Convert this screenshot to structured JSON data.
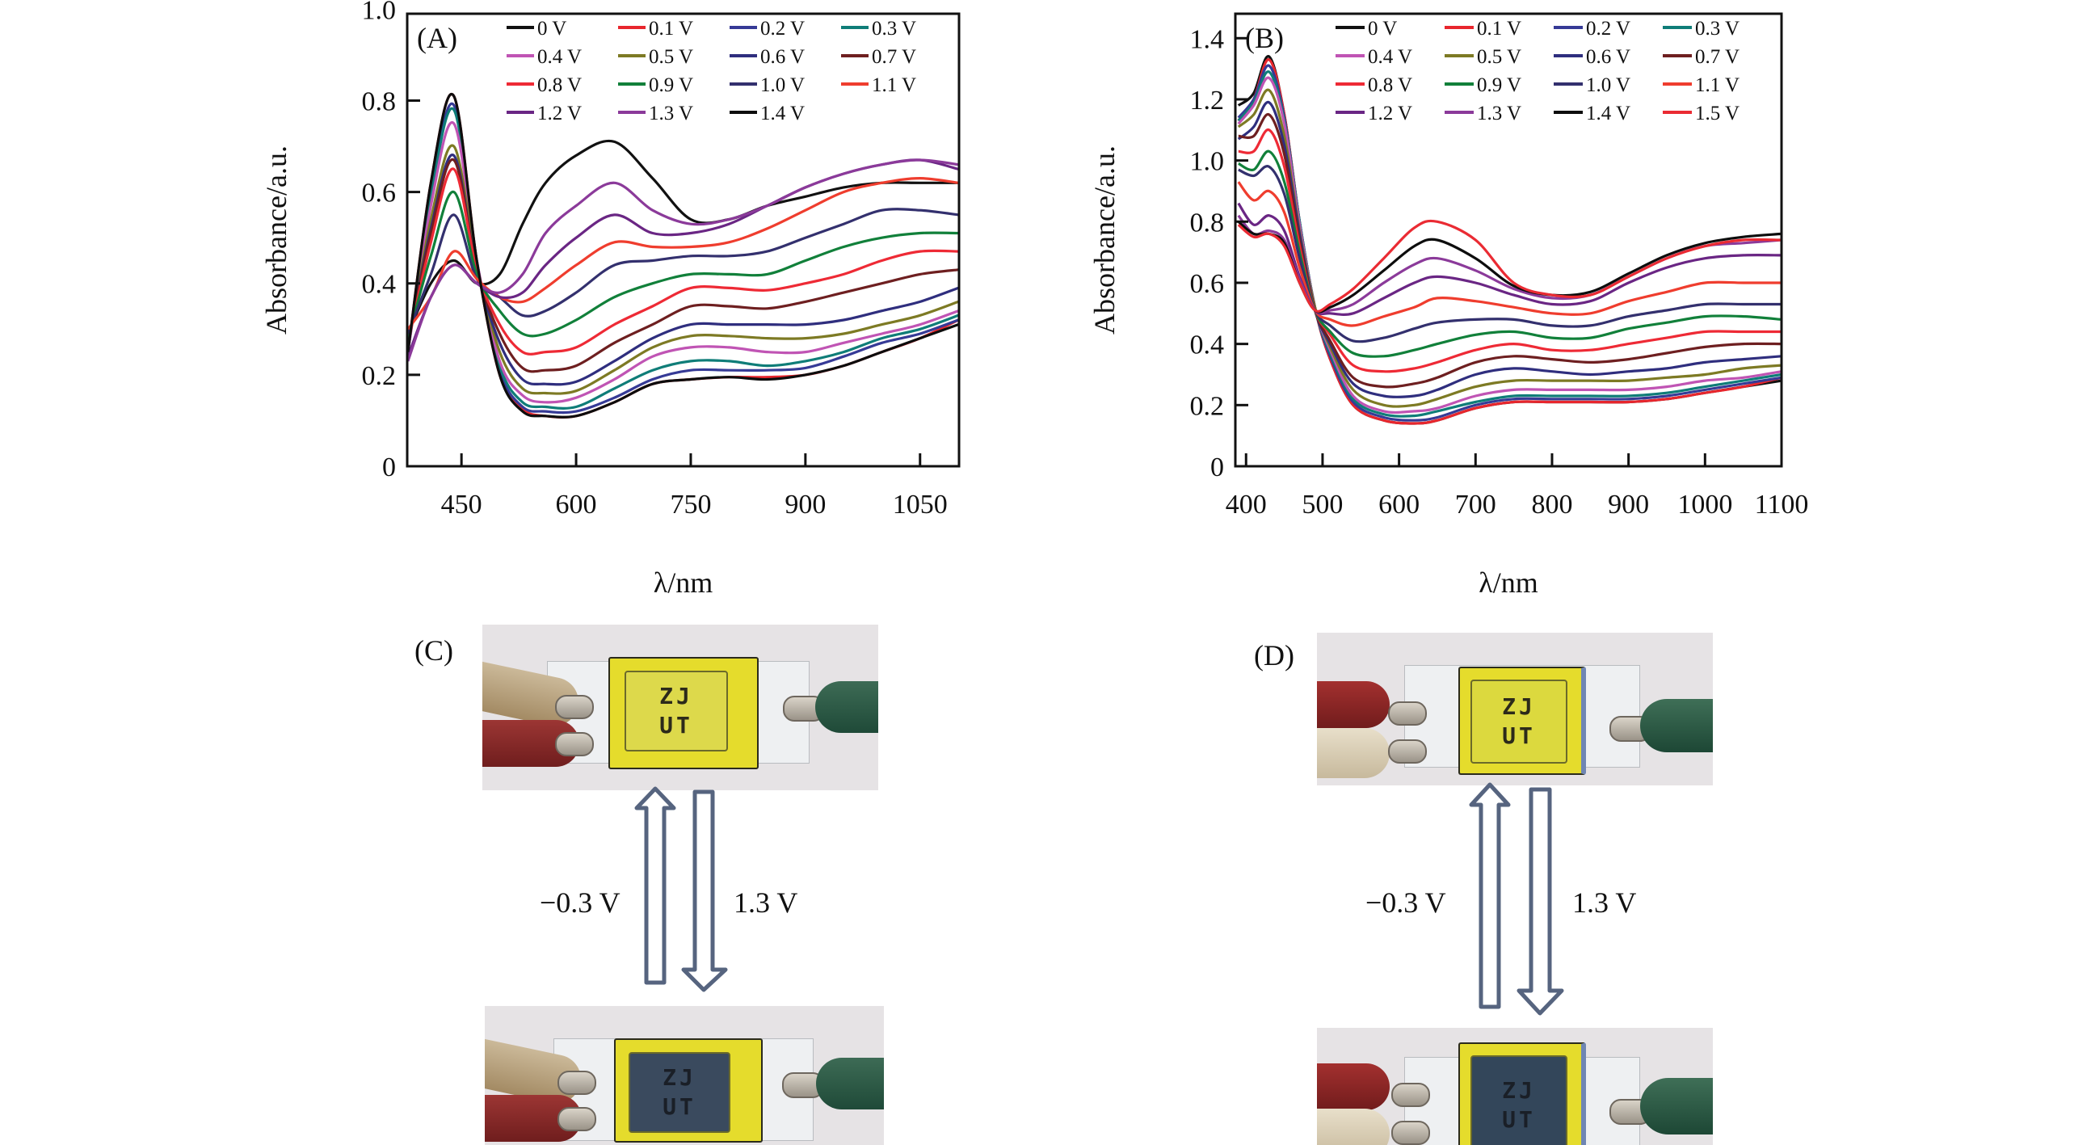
{
  "chart_data": [
    {
      "type": "line",
      "panel_label": "(A)",
      "xlabel": "λ/nm",
      "ylabel": "Absorbance/a.u.",
      "xlim": [
        379,
        1101
      ],
      "ylim": [
        0,
        0.99
      ],
      "xticks": [
        450,
        600,
        750,
        900,
        1050
      ],
      "yticks": [
        0,
        0.2,
        0.4,
        0.6,
        0.8,
        1.0
      ],
      "ytick_labels": [
        "0",
        "0.2",
        "0.4",
        "0.6",
        "0.8",
        "1.0"
      ],
      "grid": false,
      "legend_position": "top-right",
      "legend_columns": 4,
      "x": [
        380,
        410,
        440,
        470,
        500,
        530,
        560,
        600,
        650,
        700,
        750,
        800,
        850,
        900,
        950,
        1000,
        1050,
        1100
      ],
      "series": [
        {
          "name": "0 V",
          "color": "#111111",
          "values": [
            0.29,
            0.4,
            0.45,
            0.4,
            0.42,
            0.53,
            0.62,
            0.68,
            0.71,
            0.63,
            0.54,
            0.54,
            0.57,
            0.59,
            0.61,
            0.62,
            0.62,
            0.62
          ]
        },
        {
          "name": "0.1 V",
          "color": "#e8262d",
          "values": [
            0.25,
            0.62,
            0.81,
            0.45,
            0.2,
            0.125,
            0.11,
            0.11,
            0.14,
            0.18,
            0.19,
            0.195,
            0.195,
            0.2,
            0.22,
            0.25,
            0.28,
            0.32
          ]
        },
        {
          "name": "0.2 V",
          "color": "#363a96",
          "values": [
            0.25,
            0.6,
            0.79,
            0.45,
            0.21,
            0.13,
            0.12,
            0.12,
            0.15,
            0.19,
            0.21,
            0.21,
            0.21,
            0.215,
            0.24,
            0.27,
            0.29,
            0.32
          ]
        },
        {
          "name": "0.3 V",
          "color": "#0f7d78",
          "values": [
            0.25,
            0.59,
            0.78,
            0.45,
            0.22,
            0.14,
            0.13,
            0.13,
            0.17,
            0.21,
            0.23,
            0.23,
            0.22,
            0.23,
            0.25,
            0.28,
            0.3,
            0.33
          ]
        },
        {
          "name": "0.4 V",
          "color": "#c054b4",
          "values": [
            0.25,
            0.57,
            0.75,
            0.45,
            0.23,
            0.155,
            0.14,
            0.15,
            0.19,
            0.24,
            0.26,
            0.26,
            0.25,
            0.25,
            0.27,
            0.29,
            0.31,
            0.34
          ]
        },
        {
          "name": "0.5 V",
          "color": "#7d7a24",
          "values": [
            0.26,
            0.54,
            0.7,
            0.44,
            0.25,
            0.17,
            0.16,
            0.165,
            0.21,
            0.26,
            0.285,
            0.285,
            0.28,
            0.28,
            0.29,
            0.31,
            0.33,
            0.36
          ]
        },
        {
          "name": "0.6 V",
          "color": "#2f2e7e",
          "values": [
            0.27,
            0.52,
            0.68,
            0.43,
            0.27,
            0.19,
            0.18,
            0.185,
            0.23,
            0.28,
            0.31,
            0.31,
            0.31,
            0.31,
            0.32,
            0.34,
            0.36,
            0.39
          ]
        },
        {
          "name": "0.7 V",
          "color": "#6e1f20",
          "values": [
            0.27,
            0.51,
            0.67,
            0.43,
            0.29,
            0.215,
            0.21,
            0.22,
            0.27,
            0.31,
            0.35,
            0.35,
            0.345,
            0.36,
            0.38,
            0.4,
            0.42,
            0.43
          ]
        },
        {
          "name": "0.8 V",
          "color": "#ee2a35",
          "values": [
            0.27,
            0.49,
            0.65,
            0.43,
            0.31,
            0.25,
            0.25,
            0.26,
            0.31,
            0.35,
            0.39,
            0.39,
            0.385,
            0.4,
            0.42,
            0.45,
            0.47,
            0.47
          ]
        },
        {
          "name": "0.9 V",
          "color": "#11803a",
          "values": [
            0.28,
            0.46,
            0.6,
            0.42,
            0.34,
            0.29,
            0.29,
            0.32,
            0.37,
            0.4,
            0.42,
            0.42,
            0.42,
            0.45,
            0.48,
            0.5,
            0.51,
            0.51
          ]
        },
        {
          "name": "1.0 V",
          "color": "#33306e",
          "values": [
            0.29,
            0.42,
            0.55,
            0.41,
            0.37,
            0.33,
            0.34,
            0.38,
            0.44,
            0.45,
            0.46,
            0.46,
            0.47,
            0.5,
            0.53,
            0.56,
            0.56,
            0.55
          ]
        },
        {
          "name": "1.1 V",
          "color": "#ef3d2e",
          "values": [
            0.3,
            0.37,
            0.47,
            0.41,
            0.37,
            0.36,
            0.39,
            0.44,
            0.49,
            0.48,
            0.48,
            0.49,
            0.52,
            0.56,
            0.6,
            0.62,
            0.63,
            0.62
          ]
        },
        {
          "name": "1.2 V",
          "color": "#6a2684",
          "values": [
            0.24,
            0.37,
            0.44,
            0.4,
            0.37,
            0.38,
            0.44,
            0.5,
            0.55,
            0.51,
            0.51,
            0.53,
            0.57,
            0.61,
            0.64,
            0.66,
            0.67,
            0.65
          ]
        },
        {
          "name": "1.3 V",
          "color": "#8b3a9a",
          "values": [
            0.23,
            0.37,
            0.44,
            0.4,
            0.38,
            0.42,
            0.51,
            0.57,
            0.62,
            0.56,
            0.53,
            0.54,
            0.57,
            0.61,
            0.64,
            0.66,
            0.67,
            0.66
          ]
        },
        {
          "name": "1.4 V",
          "color": "#0d0d0d",
          "values": [
            0.25,
            0.62,
            0.81,
            0.45,
            0.2,
            0.12,
            0.11,
            0.11,
            0.14,
            0.18,
            0.19,
            0.195,
            0.19,
            0.2,
            0.22,
            0.25,
            0.28,
            0.31
          ]
        }
      ]
    },
    {
      "type": "line",
      "panel_label": "(B)",
      "xlabel": "λ/nm",
      "ylabel": "Absorbance/a.u.",
      "xlim": [
        386,
        1100
      ],
      "ylim": [
        0,
        1.48
      ],
      "xticks": [
        400,
        500,
        600,
        700,
        800,
        900,
        1000,
        1100
      ],
      "yticks": [
        0,
        0.2,
        0.4,
        0.6,
        0.8,
        1.0,
        1.2,
        1.4
      ],
      "ytick_labels": [
        "0",
        "0.2",
        "0.4",
        "0.6",
        "0.8",
        "1.0",
        "1.2",
        "1.4"
      ],
      "grid": false,
      "legend_position": "top-right",
      "legend_columns": 4,
      "x": [
        390,
        410,
        430,
        450,
        470,
        490,
        510,
        540,
        580,
        620,
        650,
        700,
        750,
        800,
        850,
        900,
        950,
        1000,
        1050,
        1100
      ],
      "series": [
        {
          "name": "0 V",
          "color": "#111111",
          "values": [
            1.18,
            1.22,
            1.34,
            1.15,
            0.8,
            0.52,
            0.35,
            0.2,
            0.15,
            0.14,
            0.15,
            0.19,
            0.21,
            0.21,
            0.21,
            0.21,
            0.22,
            0.24,
            0.26,
            0.28
          ]
        },
        {
          "name": "0.1 V",
          "color": "#e8262d",
          "values": [
            1.13,
            1.2,
            1.33,
            1.15,
            0.8,
            0.52,
            0.35,
            0.2,
            0.15,
            0.14,
            0.15,
            0.19,
            0.21,
            0.21,
            0.21,
            0.21,
            0.22,
            0.24,
            0.26,
            0.29
          ]
        },
        {
          "name": "0.2 V",
          "color": "#363a96",
          "values": [
            1.14,
            1.2,
            1.31,
            1.14,
            0.8,
            0.52,
            0.36,
            0.21,
            0.16,
            0.15,
            0.16,
            0.2,
            0.22,
            0.22,
            0.22,
            0.22,
            0.23,
            0.25,
            0.27,
            0.29
          ]
        },
        {
          "name": "0.3 V",
          "color": "#0f7d78",
          "values": [
            1.13,
            1.19,
            1.29,
            1.13,
            0.8,
            0.52,
            0.37,
            0.22,
            0.17,
            0.165,
            0.18,
            0.21,
            0.23,
            0.23,
            0.23,
            0.23,
            0.24,
            0.26,
            0.28,
            0.3
          ]
        },
        {
          "name": "0.4 V",
          "color": "#c054b4",
          "values": [
            1.12,
            1.18,
            1.27,
            1.12,
            0.79,
            0.52,
            0.38,
            0.23,
            0.18,
            0.18,
            0.19,
            0.23,
            0.25,
            0.25,
            0.25,
            0.25,
            0.26,
            0.28,
            0.29,
            0.31
          ]
        },
        {
          "name": "0.5 V",
          "color": "#7d7a24",
          "values": [
            1.11,
            1.15,
            1.23,
            1.08,
            0.77,
            0.52,
            0.39,
            0.25,
            0.2,
            0.2,
            0.22,
            0.26,
            0.28,
            0.28,
            0.28,
            0.28,
            0.29,
            0.3,
            0.32,
            0.33
          ]
        },
        {
          "name": "0.6 V",
          "color": "#2f2e7e",
          "values": [
            1.07,
            1.11,
            1.19,
            1.05,
            0.76,
            0.51,
            0.4,
            0.27,
            0.23,
            0.23,
            0.25,
            0.3,
            0.32,
            0.31,
            0.3,
            0.31,
            0.32,
            0.34,
            0.35,
            0.36
          ]
        },
        {
          "name": "0.7 V",
          "color": "#6e1f20",
          "values": [
            1.08,
            1.08,
            1.15,
            1.02,
            0.74,
            0.51,
            0.41,
            0.29,
            0.26,
            0.27,
            0.29,
            0.34,
            0.36,
            0.35,
            0.34,
            0.35,
            0.37,
            0.39,
            0.4,
            0.4
          ]
        },
        {
          "name": "0.8 V",
          "color": "#ee2a35",
          "values": [
            1.03,
            1.03,
            1.1,
            0.98,
            0.72,
            0.51,
            0.43,
            0.33,
            0.31,
            0.32,
            0.34,
            0.38,
            0.4,
            0.38,
            0.38,
            0.4,
            0.42,
            0.44,
            0.44,
            0.44
          ]
        },
        {
          "name": "0.9 V",
          "color": "#11803a",
          "values": [
            0.99,
            0.97,
            1.03,
            0.93,
            0.7,
            0.51,
            0.44,
            0.37,
            0.36,
            0.38,
            0.4,
            0.43,
            0.44,
            0.42,
            0.42,
            0.45,
            0.47,
            0.49,
            0.49,
            0.48
          ]
        },
        {
          "name": "1.0 V",
          "color": "#33306e",
          "values": [
            0.97,
            0.95,
            0.98,
            0.89,
            0.68,
            0.51,
            0.46,
            0.41,
            0.42,
            0.45,
            0.47,
            0.48,
            0.48,
            0.46,
            0.46,
            0.49,
            0.51,
            0.53,
            0.53,
            0.53
          ]
        },
        {
          "name": "1.1 V",
          "color": "#ef3d2e",
          "values": [
            0.93,
            0.87,
            0.9,
            0.83,
            0.65,
            0.51,
            0.48,
            0.46,
            0.49,
            0.52,
            0.55,
            0.54,
            0.52,
            0.5,
            0.5,
            0.54,
            0.57,
            0.6,
            0.6,
            0.6
          ]
        },
        {
          "name": "1.2 V",
          "color": "#6a2684",
          "values": [
            0.86,
            0.79,
            0.82,
            0.77,
            0.62,
            0.51,
            0.5,
            0.5,
            0.55,
            0.6,
            0.62,
            0.6,
            0.56,
            0.53,
            0.54,
            0.6,
            0.65,
            0.68,
            0.69,
            0.69
          ]
        },
        {
          "name": "1.3 V",
          "color": "#8b3a9a",
          "values": [
            0.82,
            0.76,
            0.77,
            0.74,
            0.61,
            0.51,
            0.51,
            0.53,
            0.6,
            0.66,
            0.68,
            0.64,
            0.58,
            0.55,
            0.56,
            0.62,
            0.68,
            0.72,
            0.73,
            0.74
          ]
        },
        {
          "name": "1.4 V",
          "color": "#0d0d0d",
          "values": [
            0.8,
            0.76,
            0.76,
            0.73,
            0.6,
            0.51,
            0.52,
            0.56,
            0.64,
            0.72,
            0.74,
            0.68,
            0.59,
            0.56,
            0.57,
            0.63,
            0.69,
            0.73,
            0.75,
            0.76
          ]
        },
        {
          "name": "1.5 V",
          "color": "#ea2b33",
          "values": [
            0.79,
            0.75,
            0.76,
            0.72,
            0.6,
            0.51,
            0.53,
            0.58,
            0.68,
            0.78,
            0.8,
            0.74,
            0.6,
            0.56,
            0.56,
            0.62,
            0.68,
            0.72,
            0.74,
            0.74
          ]
        }
      ]
    }
  ],
  "photos": {
    "C": {
      "label": "(C)",
      "top_text": [
        "ZJ",
        "UT"
      ],
      "bottom_text": [
        "ZJ",
        "UT"
      ],
      "up_arrow_label": "−0.3 V",
      "down_arrow_label": "1.3 V",
      "colored_state": "#e5dd3a",
      "bleached_state_window": "#3a4a5e"
    },
    "D": {
      "label": "(D)",
      "top_text": [
        "ZJ",
        "UT"
      ],
      "bottom_text": [
        "ZJ",
        "UT"
      ],
      "up_arrow_label": "−0.3 V",
      "down_arrow_label": "1.3 V",
      "colored_state": "#e3df3b",
      "bleached_state_window": "#33465a"
    },
    "arrow_color": "#56647f"
  }
}
